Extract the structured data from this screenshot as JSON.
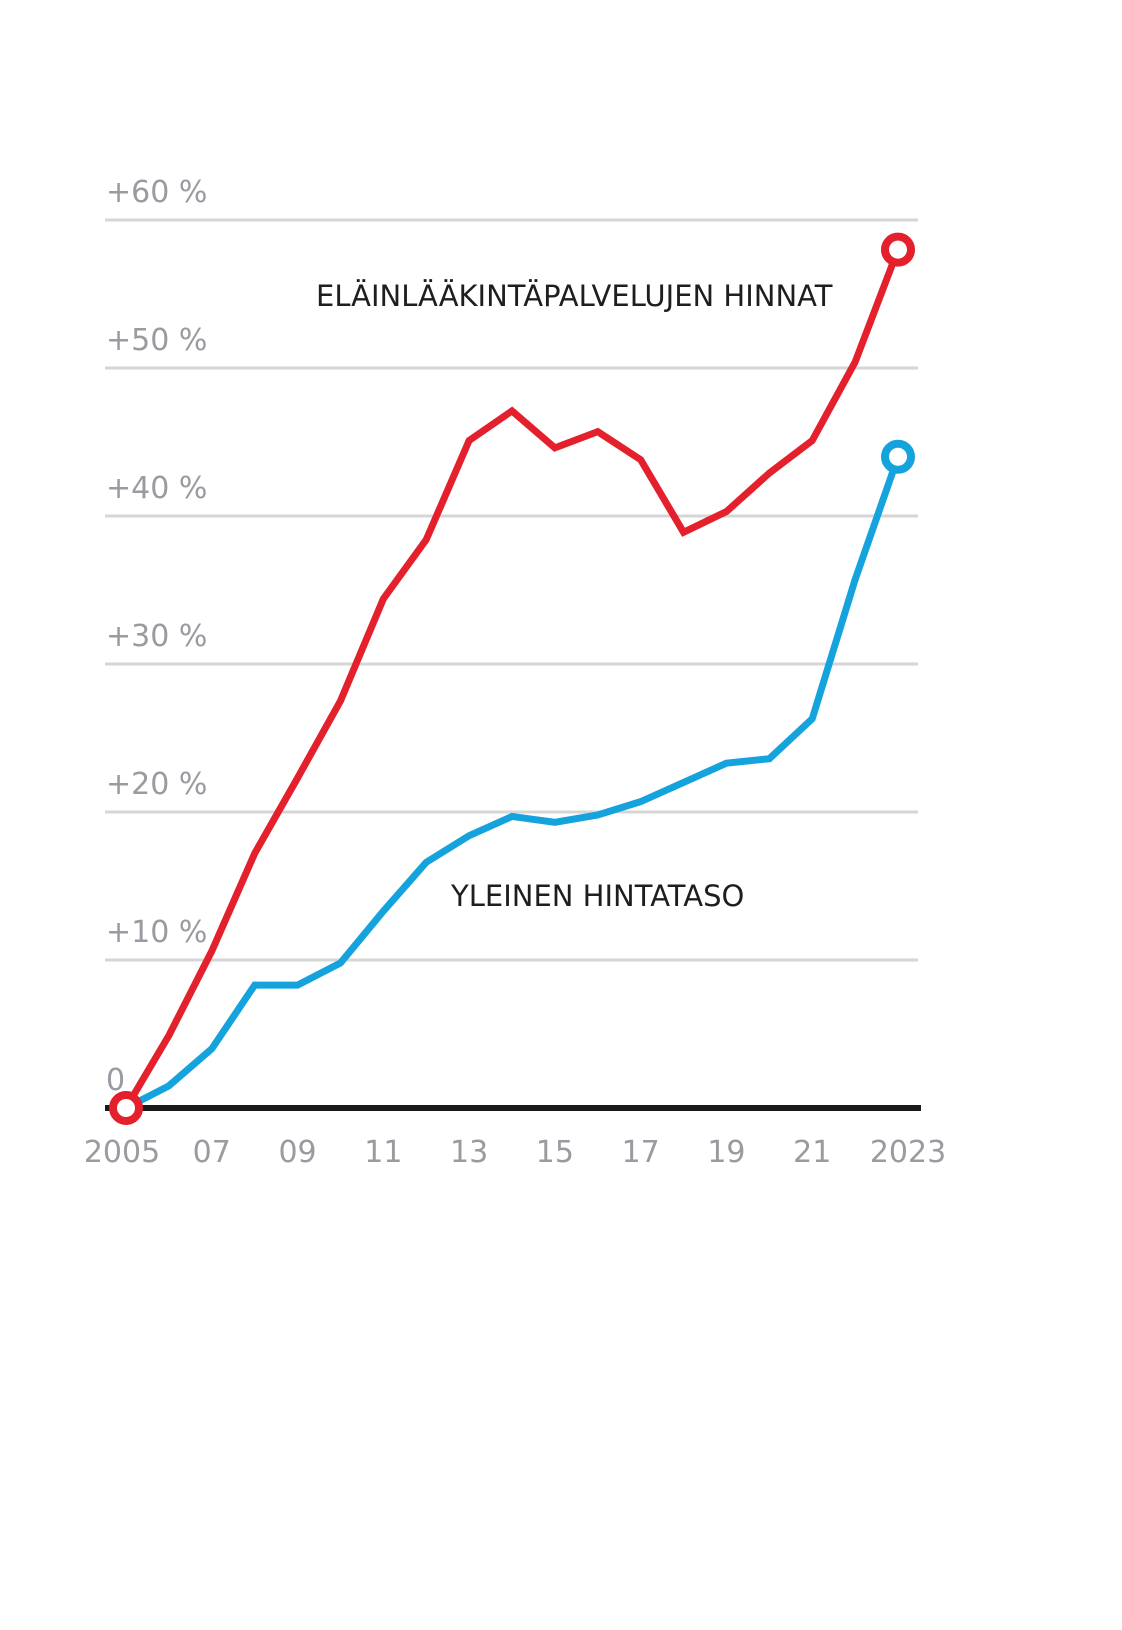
{
  "chart_data": {
    "type": "line",
    "x": [
      2005,
      2006,
      2007,
      2008,
      2009,
      2010,
      2011,
      2012,
      2013,
      2014,
      2015,
      2016,
      2017,
      2018,
      2019,
      2020,
      2021,
      2022,
      2023
    ],
    "series": [
      {
        "name": "ELÄINLÄÄKINTÄPALVELUJEN HINNAT",
        "color": "#e3202b",
        "values": [
          0,
          4.9,
          10.6,
          17.2,
          22.3,
          27.5,
          34.4,
          38.4,
          45.1,
          47.1,
          44.6,
          45.7,
          43.8,
          38.9,
          40.3,
          42.9,
          45.1,
          50.4,
          58.0
        ]
      },
      {
        "name": "YLEINEN HINTATASO",
        "color": "#14a3dd",
        "values": [
          0,
          1.5,
          4.0,
          8.3,
          8.3,
          9.8,
          13.3,
          16.6,
          18.4,
          19.7,
          19.3,
          19.8,
          20.7,
          22.0,
          23.3,
          23.6,
          26.3,
          35.7,
          44.0
        ]
      }
    ],
    "yticks": [
      {
        "value": 0,
        "label": "0"
      },
      {
        "value": 10,
        "label": "+10 %"
      },
      {
        "value": 20,
        "label": "+20 %"
      },
      {
        "value": 30,
        "label": "+30 %"
      },
      {
        "value": 40,
        "label": "+40 %"
      },
      {
        "value": 50,
        "label": "+50 %"
      },
      {
        "value": 60,
        "label": "+60 %"
      }
    ],
    "xticks": [
      {
        "value": 2005,
        "label": "2005"
      },
      {
        "value": 2007,
        "label": "07"
      },
      {
        "value": 2009,
        "label": "09"
      },
      {
        "value": 2011,
        "label": "11"
      },
      {
        "value": 2013,
        "label": "13"
      },
      {
        "value": 2015,
        "label": "15"
      },
      {
        "value": 2017,
        "label": "17"
      },
      {
        "value": 2019,
        "label": "19"
      },
      {
        "value": 2021,
        "label": "21"
      },
      {
        "value": 2023,
        "label": "2023"
      }
    ],
    "ylim": [
      0,
      60
    ],
    "xlim": [
      2005,
      2023
    ],
    "grid": true
  }
}
